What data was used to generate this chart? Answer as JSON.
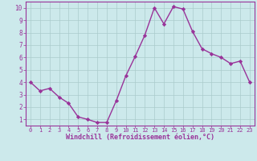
{
  "x": [
    0,
    1,
    2,
    3,
    4,
    5,
    6,
    7,
    8,
    9,
    10,
    11,
    12,
    13,
    14,
    15,
    16,
    17,
    18,
    19,
    20,
    21,
    22,
    23
  ],
  "y": [
    4,
    3.3,
    3.5,
    2.8,
    2.3,
    1.2,
    1.0,
    0.75,
    0.75,
    2.5,
    4.5,
    6.1,
    7.8,
    10.0,
    8.7,
    10.1,
    9.9,
    8.1,
    6.7,
    6.3,
    6.0,
    5.5,
    5.7,
    4.0
  ],
  "line_color": "#993399",
  "marker": "D",
  "marker_size": 2.2,
  "background_color": "#cce9eb",
  "grid_color": "#aacccc",
  "xlabel": "Windchill (Refroidissement éolien,°C)",
  "xlabel_color": "#993399",
  "tick_color": "#993399",
  "ylim": [
    0.5,
    10.5
  ],
  "xlim": [
    -0.5,
    23.5
  ],
  "yticks": [
    1,
    2,
    3,
    4,
    5,
    6,
    7,
    8,
    9,
    10
  ],
  "xticks": [
    0,
    1,
    2,
    3,
    4,
    5,
    6,
    7,
    8,
    9,
    10,
    11,
    12,
    13,
    14,
    15,
    16,
    17,
    18,
    19,
    20,
    21,
    22,
    23
  ],
  "spine_color": "#993399",
  "line_width": 1.0
}
